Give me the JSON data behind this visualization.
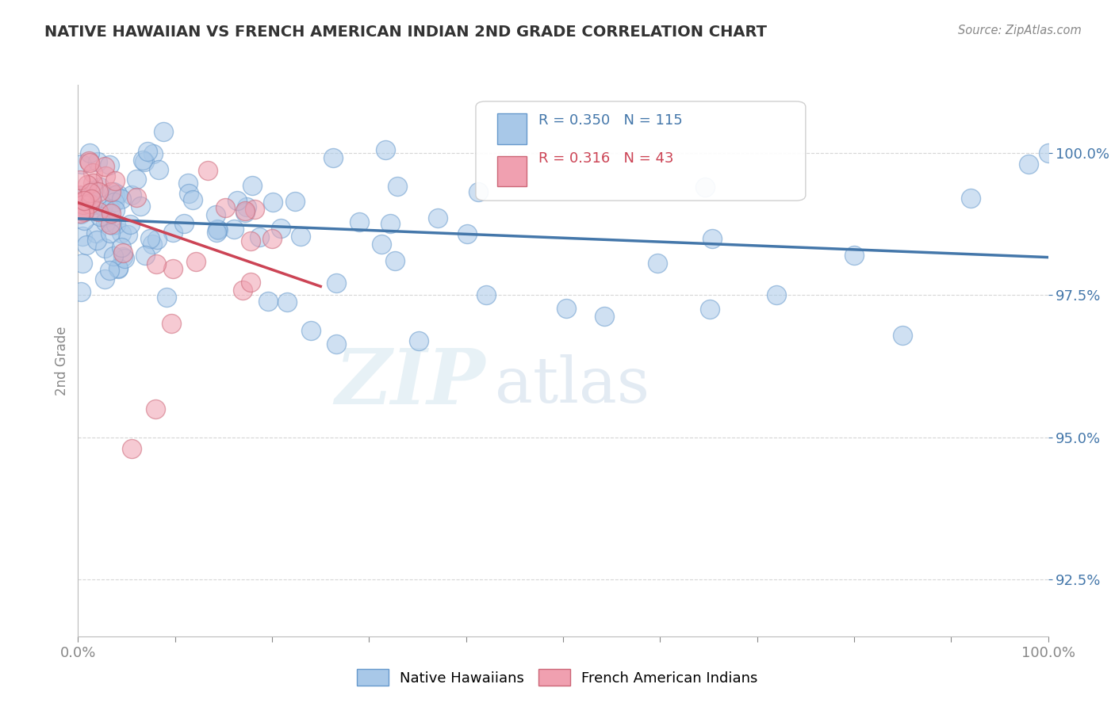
{
  "title": "NATIVE HAWAIIAN VS FRENCH AMERICAN INDIAN 2ND GRADE CORRELATION CHART",
  "source_text": "Source: ZipAtlas.com",
  "ylabel": "2nd Grade",
  "xlim": [
    0.0,
    100.0
  ],
  "ylim": [
    91.5,
    101.2
  ],
  "yticks": [
    92.5,
    95.0,
    97.5,
    100.0
  ],
  "ytick_labels": [
    "92.5%",
    "95.0%",
    "97.5%",
    "100.0%"
  ],
  "blue_fill": "#a8c8e8",
  "blue_edge": "#6699cc",
  "pink_fill": "#f0a0b0",
  "pink_edge": "#cc6677",
  "blue_line": "#4477aa",
  "pink_line": "#cc4455",
  "legend_label_blue": "Native Hawaiians",
  "legend_label_pink": "French American Indians",
  "R_blue": 0.35,
  "N_blue": 115,
  "R_pink": 0.316,
  "N_pink": 43,
  "background_color": "#ffffff",
  "grid_color": "#cccccc",
  "title_color": "#333333",
  "source_color": "#888888",
  "ylabel_color": "#888888",
  "yticklabel_color": "#4477aa",
  "xticklabel_color": "#555555"
}
